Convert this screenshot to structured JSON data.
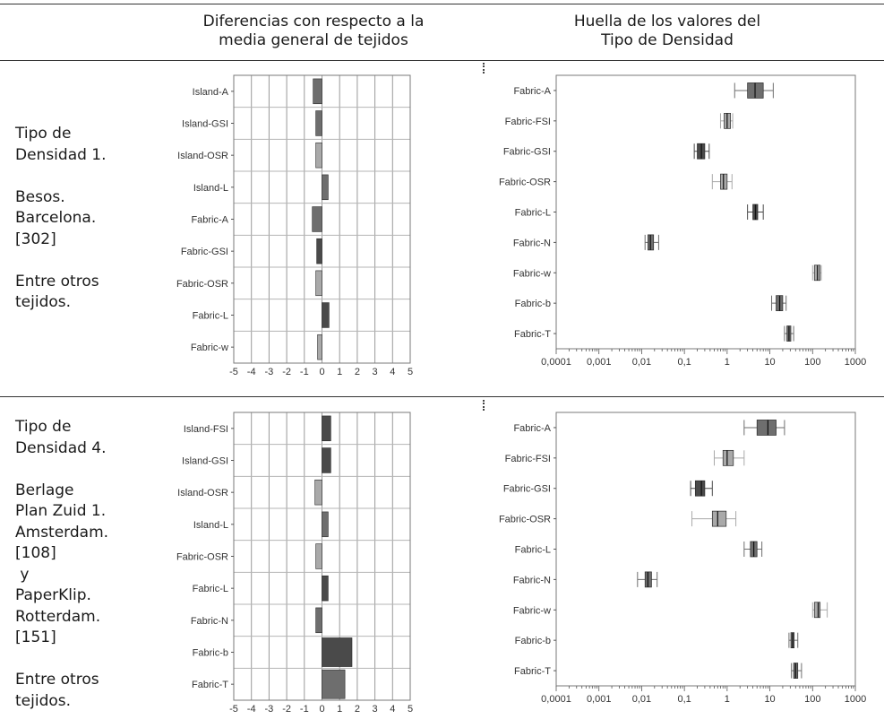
{
  "headers": {
    "left": [
      "Diferencias con respecto a la",
      "media general de tejidos"
    ],
    "right": [
      "Huella de los valores del",
      "Tipo de Densidad"
    ]
  },
  "rows": [
    {
      "label_lines": [
        "Tipo de",
        "Densidad 1.",
        "",
        "Besos.",
        "Barcelona.",
        "[302]",
        "",
        "Entre otros",
        "tejidos."
      ]
    },
    {
      "label_lines": [
        "Tipo de",
        "Densidad 4.",
        "",
        "Berlage",
        "Plan Zuid 1.",
        "Amsterdam.",
        "[108]",
        " y",
        "PaperKlip.",
        "Rotterdam.",
        "[151]",
        "",
        "Entre otros",
        "tejidos."
      ]
    }
  ],
  "colors": {
    "dark": "#4a4a4a",
    "mid": "#6e6e6e",
    "light": "#a9a9a9",
    "grid": "#9a9a9a",
    "frame": "#7a7a7a"
  },
  "chart_data": [
    {
      "type": "bar",
      "orientation": "horizontal",
      "panel": "density-1-differences",
      "categories": [
        "Island-A",
        "Island-GSI",
        "Island-OSR",
        "Island-L",
        "Fabric-A",
        "Fabric-GSI",
        "Fabric-OSR",
        "Fabric-L",
        "Fabric-w"
      ],
      "values": [
        -0.5,
        -0.35,
        -0.35,
        0.35,
        -0.55,
        -0.3,
        -0.35,
        0.4,
        -0.25
      ],
      "shades": [
        "mid",
        "mid",
        "light",
        "mid",
        "mid",
        "dark",
        "light",
        "dark",
        "light"
      ],
      "xlim": [
        -5,
        5
      ],
      "xticks": [
        "-5",
        "-4",
        "-3",
        "-2",
        "-1",
        "0",
        "1",
        "2",
        "3",
        "4",
        "5"
      ],
      "grid": true
    },
    {
      "type": "box",
      "orientation": "horizontal",
      "panel": "density-1-footprint",
      "x_scale": "log",
      "xlim": [
        0.0001,
        1000
      ],
      "xticks": [
        "0,0001",
        "0,001",
        "0,01",
        "0,1",
        "1",
        "10",
        "100",
        "1000"
      ],
      "categories": [
        "Fabric-A",
        "Fabric-FSI",
        "Fabric-GSI",
        "Fabric-OSR",
        "Fabric-L",
        "Fabric-N",
        "Fabric-w",
        "Fabric-b",
        "Fabric-T"
      ],
      "boxes": [
        {
          "min": 1.5,
          "q1": 3,
          "median": 4.5,
          "q3": 7,
          "max": 12,
          "shade": "mid"
        },
        {
          "min": 0.7,
          "q1": 0.85,
          "median": 1.0,
          "q3": 1.2,
          "max": 1.35,
          "shade": "light"
        },
        {
          "min": 0.17,
          "q1": 0.2,
          "median": 0.25,
          "q3": 0.3,
          "max": 0.38,
          "shade": "dark"
        },
        {
          "min": 0.45,
          "q1": 0.7,
          "median": 0.82,
          "q3": 1.0,
          "max": 1.3,
          "shade": "light"
        },
        {
          "min": 3.0,
          "q1": 4.0,
          "median": 4.6,
          "q3": 5.2,
          "max": 7.0,
          "shade": "dark"
        },
        {
          "min": 0.012,
          "q1": 0.014,
          "median": 0.016,
          "q3": 0.019,
          "max": 0.025,
          "shade": "mid"
        },
        {
          "min": 100,
          "q1": 110,
          "median": 130,
          "q3": 150,
          "max": 160,
          "shade": "light"
        },
        {
          "min": 11,
          "q1": 14,
          "median": 17,
          "q3": 20,
          "max": 24,
          "shade": "mid"
        },
        {
          "min": 22,
          "q1": 25,
          "median": 28,
          "q3": 31,
          "max": 36,
          "shade": "mid"
        }
      ],
      "grid": false
    },
    {
      "type": "bar",
      "orientation": "horizontal",
      "panel": "density-4-differences",
      "categories": [
        "Island-FSI",
        "Island-GSI",
        "Island-OSR",
        "Island-L",
        "Fabric-OSR",
        "Fabric-L",
        "Fabric-N",
        "Fabric-b",
        "Fabric-T"
      ],
      "values": [
        0.5,
        0.5,
        -0.4,
        0.35,
        -0.35,
        0.35,
        -0.35,
        1.7,
        1.3
      ],
      "shades": [
        "dark",
        "dark",
        "light",
        "mid",
        "light",
        "dark",
        "mid",
        "dark",
        "mid"
      ],
      "xlim": [
        -5,
        5
      ],
      "xticks": [
        "-5",
        "-4",
        "-3",
        "-2",
        "-1",
        "0",
        "1",
        "2",
        "3",
        "4",
        "5"
      ],
      "grid": true
    },
    {
      "type": "box",
      "orientation": "horizontal",
      "panel": "density-4-footprint",
      "x_scale": "log",
      "xlim": [
        0.0001,
        1000
      ],
      "xticks": [
        "0,0001",
        "0,001",
        "0,01",
        "0,1",
        "1",
        "10",
        "100",
        "1000"
      ],
      "categories": [
        "Fabric-A",
        "Fabric-FSI",
        "Fabric-GSI",
        "Fabric-OSR",
        "Fabric-L",
        "Fabric-N",
        "Fabric-w",
        "Fabric-b",
        "Fabric-T"
      ],
      "boxes": [
        {
          "min": 2.5,
          "q1": 5,
          "median": 9,
          "q3": 14,
          "max": 22,
          "shade": "mid"
        },
        {
          "min": 0.5,
          "q1": 0.8,
          "median": 1.0,
          "q3": 1.4,
          "max": 2.5,
          "shade": "light"
        },
        {
          "min": 0.14,
          "q1": 0.18,
          "median": 0.25,
          "q3": 0.3,
          "max": 0.45,
          "shade": "dark"
        },
        {
          "min": 0.15,
          "q1": 0.45,
          "median": 0.6,
          "q3": 0.95,
          "max": 1.6,
          "shade": "light"
        },
        {
          "min": 2.5,
          "q1": 3.5,
          "median": 4.2,
          "q3": 5.0,
          "max": 6.5,
          "shade": "mid"
        },
        {
          "min": 0.008,
          "q1": 0.012,
          "median": 0.014,
          "q3": 0.017,
          "max": 0.023,
          "shade": "mid"
        },
        {
          "min": 100,
          "q1": 110,
          "median": 135,
          "q3": 150,
          "max": 220,
          "shade": "light"
        },
        {
          "min": 28,
          "q1": 31,
          "median": 34,
          "q3": 37,
          "max": 45,
          "shade": "mid"
        },
        {
          "min": 32,
          "q1": 36,
          "median": 40,
          "q3": 45,
          "max": 55,
          "shade": "mid"
        }
      ],
      "grid": false
    }
  ]
}
